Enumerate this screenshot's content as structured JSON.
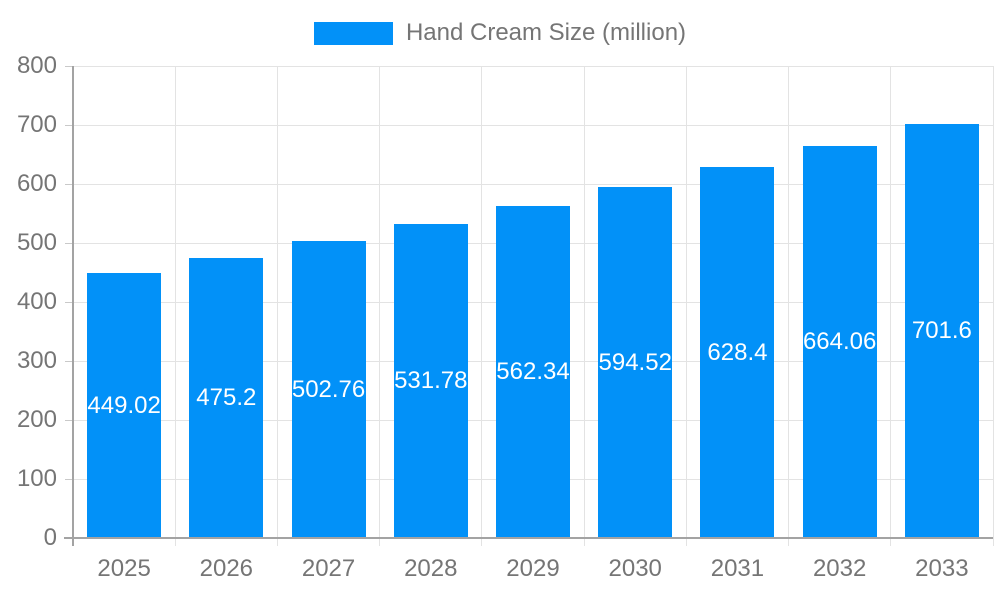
{
  "chart_data": {
    "type": "bar",
    "title": "Hand Cream Size (million)",
    "legend": [
      "Hand Cream Size (million)"
    ],
    "legend_position": "top-center",
    "categories": [
      "2025",
      "2026",
      "2027",
      "2028",
      "2029",
      "2030",
      "2031",
      "2032",
      "2033"
    ],
    "series": [
      {
        "name": "Hand Cream Size (million)",
        "values": [
          449.02,
          475.2,
          502.76,
          531.78,
          562.34,
          594.52,
          628.4,
          664.06,
          701.6
        ],
        "labels": [
          "449.02",
          "475.2",
          "502.76",
          "531.78",
          "562.34",
          "594.52",
          "628.4",
          "664.06",
          "701.6"
        ]
      }
    ],
    "xlabel": "",
    "ylabel": "",
    "ylim": [
      0,
      800
    ],
    "yticks": [
      "0",
      "100",
      "200",
      "300",
      "400",
      "500",
      "600",
      "700",
      "800"
    ],
    "grid": true,
    "colors": {
      "bar": "#0291f8",
      "bar_label": "#ffffff",
      "axis_text": "#757575",
      "axis_line": "#a3a3a3",
      "grid_line": "#e3e3e3",
      "tick_line": "#c9c9c9"
    }
  }
}
